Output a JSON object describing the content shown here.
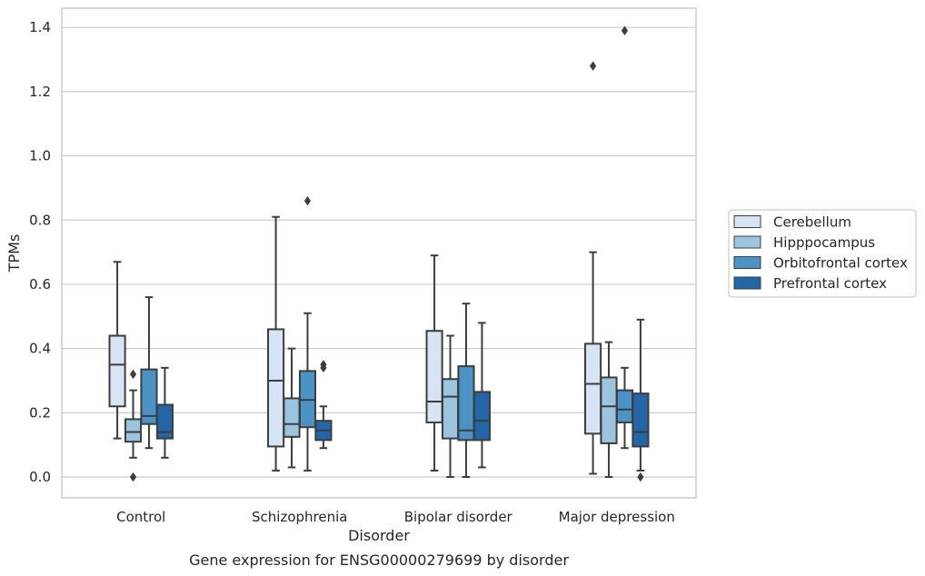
{
  "chart_data": {
    "type": "box",
    "title": "",
    "caption": "Gene expression for ENSG00000279699 by disorder",
    "xlabel": "Disorder",
    "ylabel": "TPMs",
    "ylim": [
      -0.065,
      1.46
    ],
    "yticks": [
      0.0,
      0.2,
      0.4,
      0.6,
      0.8,
      1.0,
      1.2,
      1.4
    ],
    "ytick_labels": [
      "0.0",
      "0.2",
      "0.4",
      "0.6",
      "0.8",
      "1.0",
      "1.2",
      "1.4"
    ],
    "grid": "horizontal",
    "legend_position": "right",
    "categories": [
      "Control",
      "Schizophrenia",
      "Bipolar disorder",
      "Major depression"
    ],
    "series": [
      {
        "name": "Cerebellum",
        "color": "#d6e4f3",
        "boxes": [
          {
            "whisker_low": 0.12,
            "q1": 0.22,
            "median": 0.35,
            "q3": 0.44,
            "whisker_high": 0.67,
            "outliers": []
          },
          {
            "whisker_low": 0.02,
            "q1": 0.095,
            "median": 0.3,
            "q3": 0.46,
            "whisker_high": 0.81,
            "outliers": []
          },
          {
            "whisker_low": 0.02,
            "q1": 0.17,
            "median": 0.235,
            "q3": 0.455,
            "whisker_high": 0.69,
            "outliers": []
          },
          {
            "whisker_low": 0.01,
            "q1": 0.135,
            "median": 0.29,
            "q3": 0.415,
            "whisker_high": 0.7,
            "outliers": [
              1.28
            ]
          }
        ]
      },
      {
        "name": "Hipppocampus",
        "color": "#9bc4de",
        "boxes": [
          {
            "whisker_low": 0.06,
            "q1": 0.11,
            "median": 0.14,
            "q3": 0.18,
            "whisker_high": 0.27,
            "outliers": [
              0.32,
              0.0
            ]
          },
          {
            "whisker_low": 0.03,
            "q1": 0.125,
            "median": 0.165,
            "q3": 0.245,
            "whisker_high": 0.4,
            "outliers": []
          },
          {
            "whisker_low": 0.0,
            "q1": 0.12,
            "median": 0.25,
            "q3": 0.305,
            "whisker_high": 0.44,
            "outliers": []
          },
          {
            "whisker_low": 0.0,
            "q1": 0.105,
            "median": 0.22,
            "q3": 0.31,
            "whisker_high": 0.42,
            "outliers": []
          }
        ]
      },
      {
        "name": "Orbitofrontal cortex",
        "color": "#4b93c5",
        "boxes": [
          {
            "whisker_low": 0.09,
            "q1": 0.165,
            "median": 0.19,
            "q3": 0.335,
            "whisker_high": 0.56,
            "outliers": []
          },
          {
            "whisker_low": 0.02,
            "q1": 0.155,
            "median": 0.24,
            "q3": 0.33,
            "whisker_high": 0.51,
            "outliers": [
              0.86
            ]
          },
          {
            "whisker_low": 0.0,
            "q1": 0.115,
            "median": 0.145,
            "q3": 0.345,
            "whisker_high": 0.54,
            "outliers": []
          },
          {
            "whisker_low": 0.09,
            "q1": 0.17,
            "median": 0.21,
            "q3": 0.27,
            "whisker_high": 0.34,
            "outliers": [
              1.39
            ]
          }
        ]
      },
      {
        "name": "Prefrontal cortex",
        "color": "#2366a8",
        "boxes": [
          {
            "whisker_low": 0.06,
            "q1": 0.12,
            "median": 0.14,
            "q3": 0.225,
            "whisker_high": 0.34,
            "outliers": []
          },
          {
            "whisker_low": 0.09,
            "q1": 0.115,
            "median": 0.145,
            "q3": 0.175,
            "whisker_high": 0.22,
            "outliers": [
              0.35,
              0.34
            ]
          },
          {
            "whisker_low": 0.03,
            "q1": 0.115,
            "median": 0.175,
            "q3": 0.265,
            "whisker_high": 0.48,
            "outliers": []
          },
          {
            "whisker_low": 0.02,
            "q1": 0.095,
            "median": 0.14,
            "q3": 0.26,
            "whisker_high": 0.49,
            "outliers": [
              0.0
            ]
          }
        ]
      }
    ]
  }
}
